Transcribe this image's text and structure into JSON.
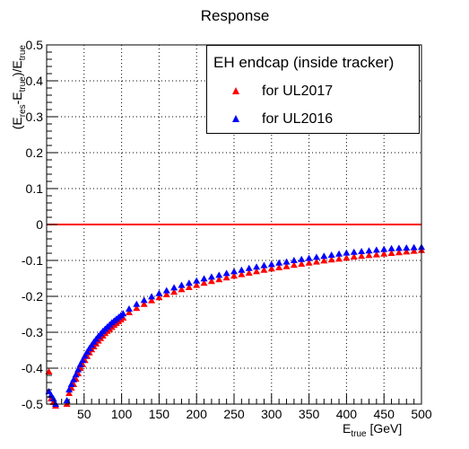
{
  "chart_data": {
    "type": "scatter",
    "title": "Response",
    "xlabel_main": "E",
    "xlabel_sub": "true",
    "xlabel_unit": " [GeV]",
    "ylabel": "(E_{res}-E_{true})/E_{true}",
    "xlim": [
      0,
      500
    ],
    "ylim": [
      -0.5,
      0.5
    ],
    "grid": true,
    "x_ticks": [
      50,
      100,
      150,
      200,
      250,
      300,
      350,
      400,
      450,
      500
    ],
    "y_ticks": [
      -0.5,
      -0.4,
      -0.3,
      -0.2,
      -0.1,
      0,
      0.1,
      0.2,
      0.3,
      0.4,
      0.5
    ],
    "x_tick_labels": [
      "50",
      "100",
      "150",
      "200",
      "250",
      "300",
      "350",
      "400",
      "450",
      "500"
    ],
    "y_tick_labels": [
      "-0.5",
      "-0.4",
      "-0.3",
      "-0.2",
      "-0.1",
      "0",
      "0.1",
      "0.2",
      "0.3",
      "0.4",
      "0.5"
    ],
    "reference_line": {
      "y": 0,
      "color": "#ff0000"
    },
    "legend": {
      "title": "EH endcap (inside tracker)",
      "placement": "top-right"
    },
    "series": [
      {
        "name": "for UL2017",
        "color": "#ff0000",
        "x": [
          3,
          6,
          9,
          12,
          15,
          18,
          21,
          24,
          27,
          30,
          33,
          36,
          39,
          42,
          45,
          48,
          51,
          54,
          57,
          60,
          63,
          66,
          69,
          72,
          75,
          78,
          81,
          84,
          87,
          90,
          93,
          96,
          99,
          102,
          110,
          120,
          130,
          140,
          150,
          160,
          170,
          180,
          190,
          200,
          210,
          220,
          230,
          240,
          250,
          260,
          270,
          280,
          290,
          300,
          310,
          320,
          330,
          340,
          350,
          360,
          370,
          380,
          390,
          400,
          410,
          420,
          430,
          440,
          450,
          460,
          470,
          480,
          490,
          500
        ],
        "y": [
          -0.41,
          -0.485,
          -0.495,
          -0.505,
          -0.52,
          -0.52,
          -0.525,
          -0.53,
          -0.5,
          -0.47,
          -0.455,
          -0.445,
          -0.43,
          -0.415,
          -0.4,
          -0.39,
          -0.378,
          -0.367,
          -0.357,
          -0.348,
          -0.34,
          -0.332,
          -0.324,
          -0.317,
          -0.31,
          -0.303,
          -0.297,
          -0.292,
          -0.286,
          -0.28,
          -0.275,
          -0.27,
          -0.265,
          -0.26,
          -0.245,
          -0.233,
          -0.222,
          -0.212,
          -0.203,
          -0.195,
          -0.188,
          -0.181,
          -0.175,
          -0.169,
          -0.163,
          -0.158,
          -0.153,
          -0.148,
          -0.143,
          -0.139,
          -0.135,
          -0.131,
          -0.127,
          -0.123,
          -0.12,
          -0.117,
          -0.113,
          -0.11,
          -0.107,
          -0.104,
          -0.101,
          -0.098,
          -0.096,
          -0.093,
          -0.09,
          -0.088,
          -0.086,
          -0.084,
          -0.082,
          -0.08,
          -0.078,
          -0.076,
          -0.074,
          -0.072
        ]
      },
      {
        "name": "for UL2016",
        "color": "#0000ff",
        "x": [
          3,
          6,
          9,
          12,
          15,
          18,
          21,
          24,
          27,
          30,
          33,
          36,
          39,
          42,
          45,
          48,
          51,
          54,
          57,
          60,
          63,
          66,
          69,
          72,
          75,
          78,
          81,
          84,
          87,
          90,
          93,
          96,
          99,
          102,
          110,
          120,
          130,
          140,
          150,
          160,
          170,
          180,
          190,
          200,
          210,
          220,
          230,
          240,
          250,
          260,
          270,
          280,
          290,
          300,
          310,
          320,
          330,
          340,
          350,
          360,
          370,
          380,
          390,
          400,
          410,
          420,
          430,
          440,
          450,
          460,
          470,
          480,
          490,
          500
        ],
        "y": [
          -0.465,
          -0.475,
          -0.485,
          -0.5,
          -0.515,
          -0.515,
          -0.52,
          -0.525,
          -0.49,
          -0.46,
          -0.445,
          -0.432,
          -0.418,
          -0.404,
          -0.39,
          -0.378,
          -0.366,
          -0.355,
          -0.345,
          -0.336,
          -0.327,
          -0.319,
          -0.311,
          -0.304,
          -0.297,
          -0.291,
          -0.285,
          -0.279,
          -0.273,
          -0.268,
          -0.263,
          -0.258,
          -0.253,
          -0.248,
          -0.235,
          -0.222,
          -0.211,
          -0.201,
          -0.192,
          -0.184,
          -0.176,
          -0.169,
          -0.163,
          -0.157,
          -0.151,
          -0.146,
          -0.141,
          -0.136,
          -0.131,
          -0.127,
          -0.122,
          -0.118,
          -0.114,
          -0.111,
          -0.107,
          -0.104,
          -0.1,
          -0.097,
          -0.094,
          -0.091,
          -0.088,
          -0.085,
          -0.082,
          -0.079,
          -0.077,
          -0.075,
          -0.073,
          -0.071,
          -0.069,
          -0.067,
          -0.066,
          -0.065,
          -0.064,
          -0.063
        ]
      }
    ]
  }
}
